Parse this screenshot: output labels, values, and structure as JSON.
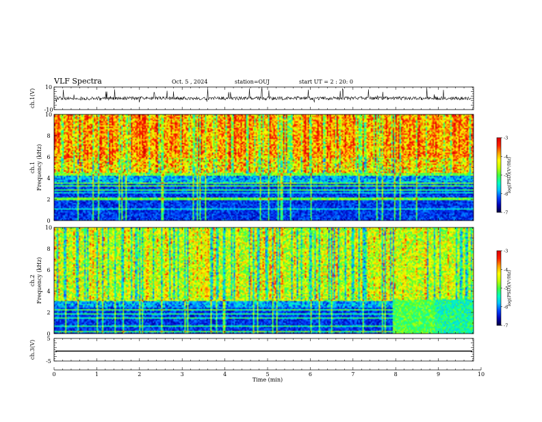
{
  "header": {
    "title": "VLF Spectra",
    "date": "Oct. 5 , 2024",
    "station": "station=OUJ",
    "start": "start UT = 2 : 20: 0"
  },
  "colors": {
    "colormap": [
      "#00003a",
      "#0000b0",
      "#0040ff",
      "#00c0ff",
      "#00ffc0",
      "#40ff40",
      "#c0ff00",
      "#ffff00",
      "#ffa000",
      "#ff2000",
      "#e00000"
    ]
  },
  "chart_data": [
    {
      "type": "line",
      "panel": "ch1-waveform",
      "ylabel": "ch.1(V)",
      "ylim": [
        -10,
        10
      ],
      "yticks": [
        "10",
        "-10"
      ],
      "baseline": 0,
      "note_series": "noisy waveform around 0 V with spikes"
    },
    {
      "type": "heatmap",
      "panel": "ch1-spectrogram",
      "ylabel_line1": "ch.1",
      "ylabel_line2": "Frequency (kHz)",
      "ylim": [
        0,
        10
      ],
      "yticks": [
        "0",
        "2",
        "4",
        "6",
        "8",
        "10"
      ],
      "colorbar": {
        "label": "log(PSD)(V²/Hz)",
        "range": [
          -7,
          -3
        ],
        "ticks": [
          "-3",
          "-4",
          "-5",
          "-6",
          "-7"
        ]
      }
    },
    {
      "type": "heatmap",
      "panel": "ch2-spectrogram",
      "ylabel_line1": "ch.2",
      "ylabel_line2": "Frequency (kHz)",
      "ylim": [
        0,
        10
      ],
      "yticks": [
        "0",
        "2",
        "4",
        "6",
        "8",
        "10"
      ],
      "colorbar": {
        "label": "log(PSD)(V²/Hz)",
        "range": [
          -7,
          -3
        ],
        "ticks": [
          "-3",
          "-4",
          "-5",
          "-6",
          "-7"
        ]
      }
    },
    {
      "type": "line",
      "panel": "ch3-waveform",
      "ylabel": "ch.3(V)",
      "ylim": [
        -5,
        5
      ],
      "yticks": [
        "5",
        "-5"
      ],
      "baseline": 0,
      "xlabel": "Time (min)",
      "xlim": [
        0,
        10
      ],
      "xticks": [
        "0",
        "1",
        "2",
        "3",
        "4",
        "5",
        "6",
        "7",
        "8",
        "9",
        "10"
      ]
    }
  ]
}
